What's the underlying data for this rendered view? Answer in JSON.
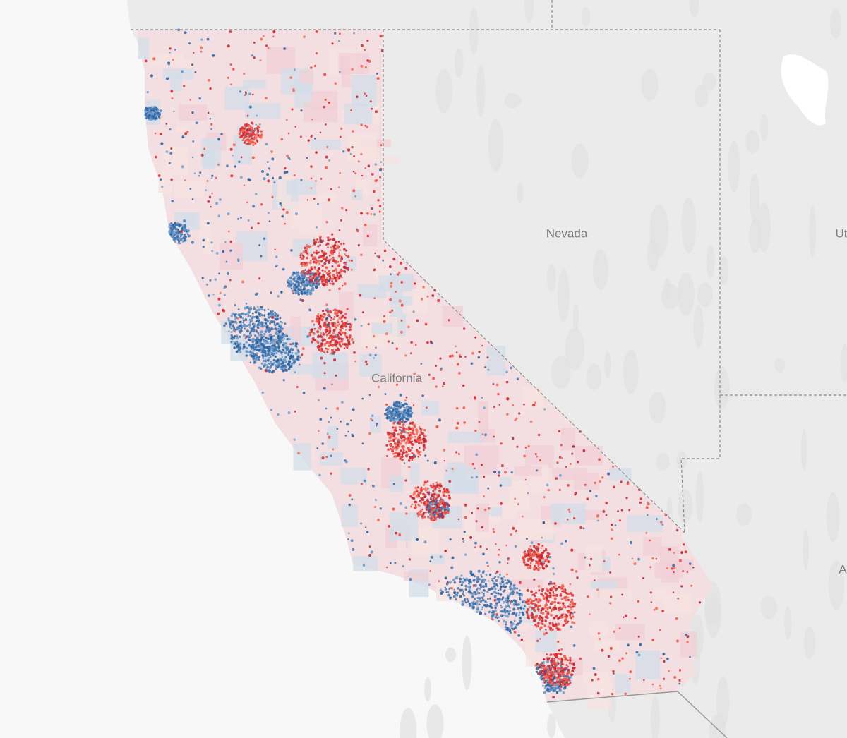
{
  "map": {
    "labels": {
      "nevada": "Nevada",
      "california": "California",
      "utah": "Ut",
      "arizona": "A"
    }
  }
}
